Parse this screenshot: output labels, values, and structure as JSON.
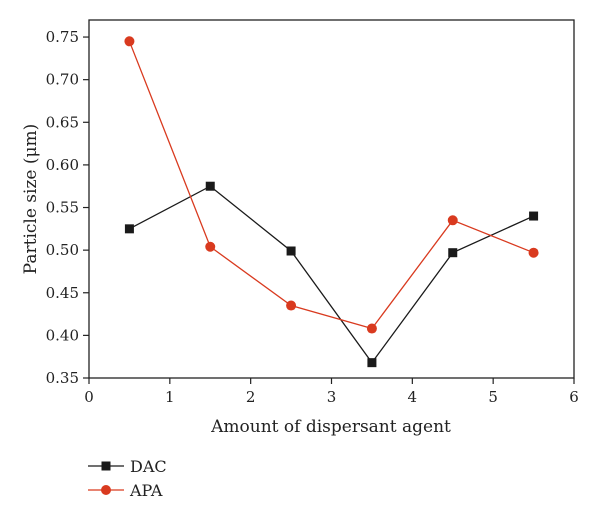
{
  "chart_data": {
    "type": "line",
    "xlabel": "Amount of dispersant agent",
    "ylabel": "Particle size (μm)",
    "xlim": [
      0,
      6
    ],
    "ylim": [
      0.35,
      0.77
    ],
    "xticks": [
      "0",
      "1",
      "2",
      "3",
      "4",
      "5",
      "6"
    ],
    "yticks": [
      "0.35",
      "0.40",
      "0.45",
      "0.50",
      "0.55",
      "0.60",
      "0.65",
      "0.70",
      "0.75"
    ],
    "grid": false,
    "legend_position": "bottom-left, below plot",
    "series": [
      {
        "name": "DAC",
        "color": "#1a1a1a",
        "marker": "square",
        "x": [
          0.5,
          1.5,
          2.5,
          3.5,
          4.5,
          5.5
        ],
        "y": [
          0.525,
          0.575,
          0.499,
          0.368,
          0.497,
          0.54
        ]
      },
      {
        "name": "APA",
        "color": "#d93a1f",
        "marker": "circle",
        "x": [
          0.5,
          1.5,
          2.5,
          3.5,
          4.5,
          5.5
        ],
        "y": [
          0.745,
          0.504,
          0.435,
          0.408,
          0.535,
          0.497
        ]
      }
    ]
  }
}
